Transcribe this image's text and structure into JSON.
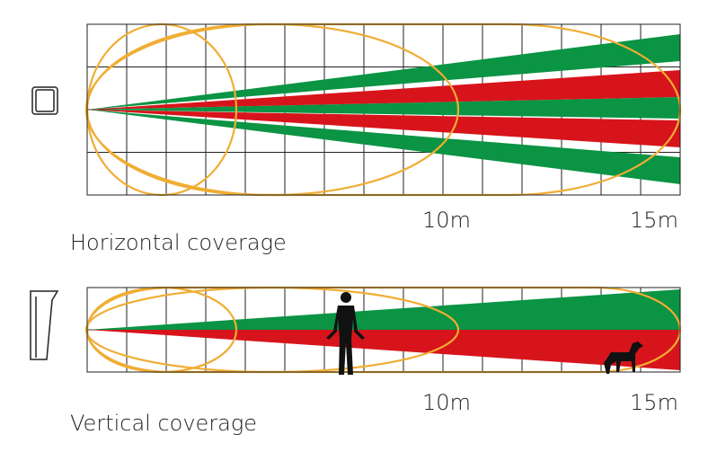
{
  "panels": [
    {
      "title": "Horizontal coverage",
      "scale": [
        "10m",
        "15m"
      ]
    },
    {
      "title": "Vertical coverage",
      "scale": [
        "10m",
        "15m"
      ]
    }
  ]
}
